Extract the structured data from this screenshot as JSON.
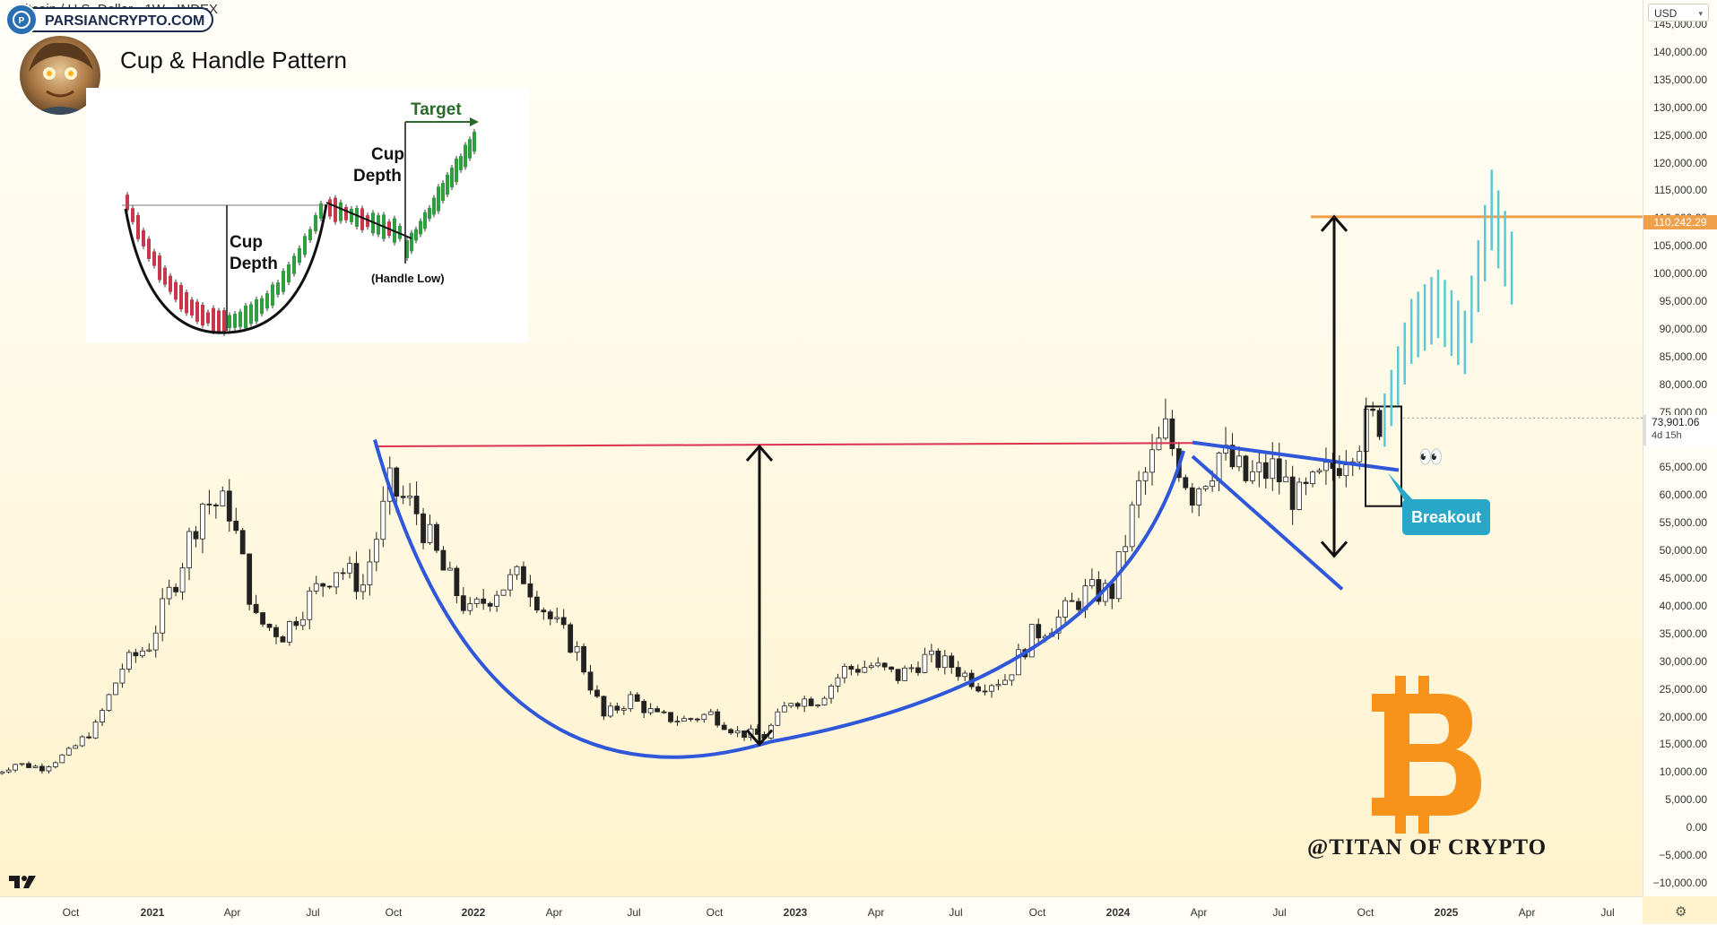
{
  "symbol_title": "itcoin / U.S. Dollar · 1W · INDEX",
  "site_badge": "PARSIANCRYPTO.COM",
  "watermark": "@TITAN OF CRYPTO",
  "icons": {
    "tradingview": "tradingview-logo-icon",
    "avatar": "avatar-portrait",
    "bitcoin": "bitcoin-logo-icon",
    "eyes": "eyes-emoji-icon",
    "settings": "settings-icon"
  },
  "price_axis": {
    "currency": "USD",
    "ticks": [
      "145,000.00",
      "140,000.00",
      "135,000.00",
      "130,000.00",
      "125,000.00",
      "120,000.00",
      "115,000.00",
      "110,000.00",
      "105,000.00",
      "100,000.00",
      "95,000.00",
      "90,000.00",
      "85,000.00",
      "80,000.00",
      "75,000.00",
      "70,000.00",
      "65,000.00",
      "60,000.00",
      "55,000.00",
      "50,000.00",
      "45,000.00",
      "40,000.00",
      "35,000.00",
      "30,000.00",
      "25,000.00",
      "20,000.00",
      "15,000.00",
      "10,000.00",
      "5,000.00",
      "0.00",
      "−5,000.00",
      "−10,000.00"
    ],
    "target_label": "110,242.29",
    "last_price": "73,901.06",
    "countdown": "4d 15h"
  },
  "time_axis": {
    "ticks": [
      {
        "label": "Oct",
        "year": false
      },
      {
        "label": "2021",
        "year": true
      },
      {
        "label": "Apr",
        "year": false
      },
      {
        "label": "Jul",
        "year": false
      },
      {
        "label": "Oct",
        "year": false
      },
      {
        "label": "2022",
        "year": true
      },
      {
        "label": "Apr",
        "year": false
      },
      {
        "label": "Jul",
        "year": false
      },
      {
        "label": "Oct",
        "year": false
      },
      {
        "label": "2023",
        "year": true
      },
      {
        "label": "Apr",
        "year": false
      },
      {
        "label": "Jul",
        "year": false
      },
      {
        "label": "Oct",
        "year": false
      },
      {
        "label": "2024",
        "year": true
      },
      {
        "label": "Apr",
        "year": false
      },
      {
        "label": "Jul",
        "year": false
      },
      {
        "label": "Oct",
        "year": false
      },
      {
        "label": "2025",
        "year": true
      },
      {
        "label": "Apr",
        "year": false
      },
      {
        "label": "Jul",
        "year": false
      }
    ]
  },
  "inset": {
    "title": "Cup & Handle Pattern",
    "cup_depth_left_1": "Cup",
    "cup_depth_left_2": "Depth",
    "cup_depth_right_1": "Cup",
    "cup_depth_right_2": "Depth",
    "handle_low": "(Handle Low)",
    "target": "Target"
  },
  "annotations": {
    "breakout": "Breakout"
  },
  "colors": {
    "cup_line": "#2f57d9",
    "resistance_line": "#d9324e",
    "target_line": "#f0a04b",
    "projection": "#5cc8d6",
    "breakout_box": "#29a7c8",
    "bitcoin": "#f7931a",
    "candle_up": "#ffffff",
    "candle_down": "#222222"
  },
  "chart_data": {
    "type": "candlestick",
    "title": "",
    "interval": "1W",
    "x_range": [
      "2020-07",
      "2025-08"
    ],
    "ylim": [
      -10000,
      145000
    ],
    "grid": false,
    "weekly_closes": [
      {
        "date": "2020-07",
        "close": 9200
      },
      {
        "date": "2020-08",
        "close": 11500
      },
      {
        "date": "2020-09",
        "close": 10800
      },
      {
        "date": "2020-10",
        "close": 13500
      },
      {
        "date": "2020-11",
        "close": 18200
      },
      {
        "date": "2020-12",
        "close": 28900
      },
      {
        "date": "2021-01",
        "close": 33100
      },
      {
        "date": "2021-02",
        "close": 45100
      },
      {
        "date": "2021-03",
        "close": 58800
      },
      {
        "date": "2021-04",
        "close": 57700
      },
      {
        "date": "2021-05",
        "close": 37300
      },
      {
        "date": "2021-06",
        "close": 35000
      },
      {
        "date": "2021-07",
        "close": 41500
      },
      {
        "date": "2021-08",
        "close": 47100
      },
      {
        "date": "2021-09",
        "close": 43800
      },
      {
        "date": "2021-10",
        "close": 61300
      },
      {
        "date": "2021-11",
        "close": 57000
      },
      {
        "date": "2021-12",
        "close": 46300
      },
      {
        "date": "2022-01",
        "close": 38500
      },
      {
        "date": "2022-02",
        "close": 43200
      },
      {
        "date": "2022-03",
        "close": 45500
      },
      {
        "date": "2022-04",
        "close": 37700
      },
      {
        "date": "2022-05",
        "close": 31800
      },
      {
        "date": "2022-06",
        "close": 19900
      },
      {
        "date": "2022-07",
        "close": 23300
      },
      {
        "date": "2022-08",
        "close": 20000
      },
      {
        "date": "2022-09",
        "close": 19400
      },
      {
        "date": "2022-10",
        "close": 20500
      },
      {
        "date": "2022-11",
        "close": 17100
      },
      {
        "date": "2022-12",
        "close": 16500
      },
      {
        "date": "2023-01",
        "close": 23100
      },
      {
        "date": "2023-02",
        "close": 23100
      },
      {
        "date": "2023-03",
        "close": 28500
      },
      {
        "date": "2023-04",
        "close": 29200
      },
      {
        "date": "2023-05",
        "close": 27200
      },
      {
        "date": "2023-06",
        "close": 30500
      },
      {
        "date": "2023-07",
        "close": 29200
      },
      {
        "date": "2023-08",
        "close": 25900
      },
      {
        "date": "2023-09",
        "close": 26900
      },
      {
        "date": "2023-10",
        "close": 34600
      },
      {
        "date": "2023-11",
        "close": 37700
      },
      {
        "date": "2023-12",
        "close": 42300
      },
      {
        "date": "2024-01",
        "close": 42600
      },
      {
        "date": "2024-02",
        "close": 61100
      },
      {
        "date": "2024-03",
        "close": 71300
      },
      {
        "date": "2024-04",
        "close": 60600
      },
      {
        "date": "2024-05",
        "close": 67500
      },
      {
        "date": "2024-06",
        "close": 62700
      },
      {
        "date": "2024-07",
        "close": 64600
      },
      {
        "date": "2024-08",
        "close": 58900
      },
      {
        "date": "2024-09",
        "close": 63300
      },
      {
        "date": "2024-10",
        "close": 70200
      },
      {
        "date": "2024-11",
        "close": 73901
      }
    ],
    "last_price": 73901.06,
    "target_price": 110242.29,
    "resistance_level": 69000,
    "cup_low": 15500,
    "projection_path": [
      {
        "date": "2024-11",
        "price": 73900
      },
      {
        "date": "2024-12",
        "price": 90000
      },
      {
        "date": "2025-01",
        "price": 95000
      },
      {
        "date": "2025-02",
        "price": 88000
      },
      {
        "date": "2025-03",
        "price": 112000
      },
      {
        "date": "2025-04",
        "price": 98000
      }
    ]
  }
}
